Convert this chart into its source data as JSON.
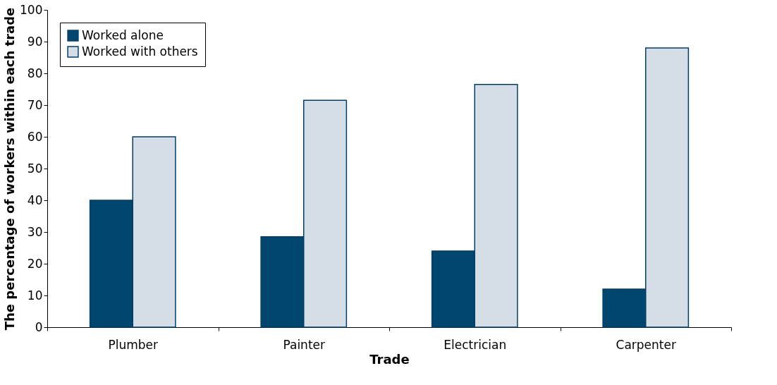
{
  "chart_data": {
    "type": "bar",
    "xlabel": "Trade",
    "ylabel": "The percentage of workers within each trade",
    "categories": [
      "Plumber",
      "Painter",
      "Electrician",
      "Carpenter"
    ],
    "series": [
      {
        "name": "Worked alone",
        "color": "#00466e",
        "values": [
          40,
          28.5,
          24,
          12
        ]
      },
      {
        "name": "Worked with others",
        "color": "#d5dde6",
        "values": [
          60,
          71.5,
          76.5,
          88
        ]
      }
    ],
    "ylim": [
      0,
      100
    ],
    "yticks": [
      0,
      10,
      20,
      30,
      40,
      50,
      60,
      70,
      80,
      90,
      100
    ],
    "grid": false,
    "legend": "top left"
  }
}
